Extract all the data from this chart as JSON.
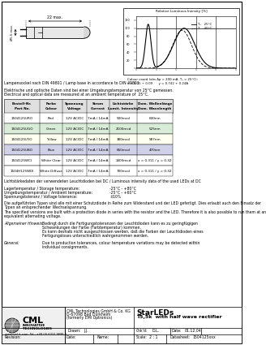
{
  "title_line1": "StarLEDs",
  "title_line2": "T5,5k  with half wave rectifier",
  "company_line1": "CML Technologies GmbH & Co. KG",
  "company_line2": "D-67098 Bad Dürkheim",
  "company_line3": "(formerly EMI Optronics)",
  "drawn": "J.J.",
  "chkd": "D.L.",
  "date": "01.12.04",
  "scale": "2 : 1",
  "datasheet": "1504125xxx",
  "lamp_base_text": "Lampensockel nach DIN 49801 / Lamp base in accordance to DIN 49801",
  "electrical_text_de": "Elektrische und optische Daten sind bei einer Umgebungstemperatur von 25°C gemessen.",
  "electrical_text_en": "Electrical and optical data are measured at an ambient temperature of  25°C.",
  "table_header_row1": [
    "Bestell-Nr.",
    "Farbe",
    "Spannung",
    "Strom",
    "Lichtstärke",
    "Dom. Wellenlänge"
  ],
  "table_header_row2": [
    "Part No.",
    "Colour",
    "Voltage",
    "Current",
    "Lumit. Intensity",
    "Dom. Wavelength"
  ],
  "table_rows": [
    [
      "1504125URO",
      "Red",
      "12V AC/DC",
      "7mA / 14mA",
      "500mcd",
      "630nm"
    ],
    [
      "1504125UGO",
      "Green",
      "12V AC/DC",
      "7mA / 14mA",
      "2100mcd",
      "525nm"
    ],
    [
      "1504125UYO",
      "Yellow",
      "12V AC/DC",
      "7mA / 14mA",
      "380mcd",
      "587nm"
    ],
    [
      "1504125UBO",
      "Blue",
      "12V AC/DC",
      "7mA / 14mA",
      "650mcd",
      "470nm"
    ],
    [
      "1504125WCI",
      "White Clear",
      "12V AC/DC",
      "7mA / 14mA",
      "1400mcd",
      "x = 0.311 / y = 0.32"
    ],
    [
      "1504H125WDI",
      "White Diffuse",
      "12V AC/DC",
      "7mA / 14mA",
      "700mcd",
      "x = 0.311 / y = 0.32"
    ]
  ],
  "row_colors": [
    "#ffffff",
    "#d8ecd8",
    "#fffff0",
    "#d0d0e8",
    "#ffffff",
    "#ffffff"
  ],
  "luminous_text": "Lichtstärkedaten der verwendeten Leuchtdioden bei DC / Luminous intensity data of the used LEDs at DC",
  "storage_temp_label": "Lagertemperatur / Storage temperature:",
  "storage_temp_val": "-25°C - +80°C",
  "ambient_temp_label": "Umgebungstemperatur / Ambient temperature:",
  "ambient_temp_val": "-25°C - +60°C",
  "voltage_tol_label": "Spannungstoleranz / Voltage tolerance:",
  "voltage_tol_val": "±10%",
  "protection_de": "Die aufgeführten Typen sind alle mit einer Schutzdiode in Reihe zum Widerstand und der LED gefertigt. Dies erlaubt auch den Einsatz der",
  "protection_de2": "Typen an entsprechender Wechselspannung.",
  "protection_en": "The specified versions are built with a protection diode in series with the resistor and the LED. Therefore it is also possible to run them at an",
  "protection_en2": "equivalent alternating voltage.",
  "allgemein_label": "Allgemeiner Hinweis:",
  "allgemein_text": [
    "Bedingt durch die Fertigungstoleranzen der Leuchtdioden kann es zu geringfügigen",
    "Schwankungen der Farbe (Farbtemperatur) kommen.",
    "Es kann deshalb nicht ausgeschlossen werden, daß die Farben der Leuchtdioden eines",
    "Fertigungsloses unterschiedlich wahrgenommen werden."
  ],
  "general_label": "General:",
  "general_text": [
    "Due to production tolerances, colour temperature variations may be detected within",
    "individual consignments."
  ],
  "graph_title": "Relative Luminous Inensity [%]",
  "graph_formula1": "Colour coord (abs Δp = 200 mA, T₀ = 25°C):",
  "graph_formula2": "x = 0.15 ÷ 0.09      y = 0.742 + 0.24A",
  "dim_width": "22 max.",
  "dim_height": "Ø5,5 max.",
  "bg_color": "#ffffff"
}
